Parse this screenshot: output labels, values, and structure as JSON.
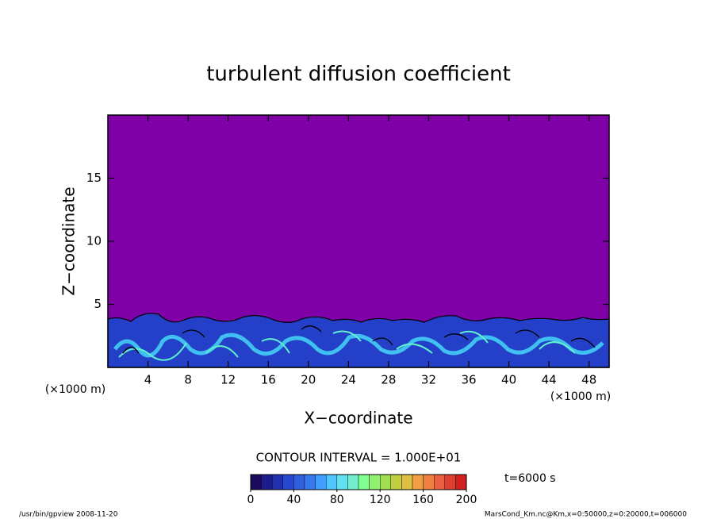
{
  "chart_data": {
    "type": "contour",
    "title": "turbulent diffusion coefficient",
    "x_label": "X−coordinate",
    "y_label": "Z−coordinate",
    "x_unit_left": "(×1000 m)",
    "x_unit_right": "(×1000 m)",
    "xlim": [
      0,
      50
    ],
    "xticks": [
      4,
      8,
      12,
      16,
      20,
      24,
      28,
      32,
      36,
      40,
      44,
      48
    ],
    "ylim": [
      0,
      20
    ],
    "yticks": [
      5,
      10,
      15
    ],
    "background_color": "#8000a8",
    "contour_interval": "CONTOUR INTERVAL = 1.000E+01",
    "time_label": "t=6000 s",
    "colorbar": {
      "range": [
        0,
        200
      ],
      "ticks": [
        0,
        40,
        80,
        120,
        160,
        200
      ],
      "colors": [
        "#1a0a60",
        "#1c1c8c",
        "#2030b0",
        "#2848d0",
        "#3060e0",
        "#3878f0",
        "#40a0ff",
        "#50c8ff",
        "#60e0f0",
        "#70f0d0",
        "#80ff90",
        "#90f070",
        "#a0e050",
        "#c0d040",
        "#e0c040",
        "#f0a040",
        "#f08040",
        "#e86040",
        "#e04030",
        "#d02020"
      ]
    },
    "footer_left": "/usr/bin/gpview   2008-11-20",
    "footer_right": "MarsCond_Km.nc@Km,x=0:50000,z=0:20000,t=006000"
  }
}
